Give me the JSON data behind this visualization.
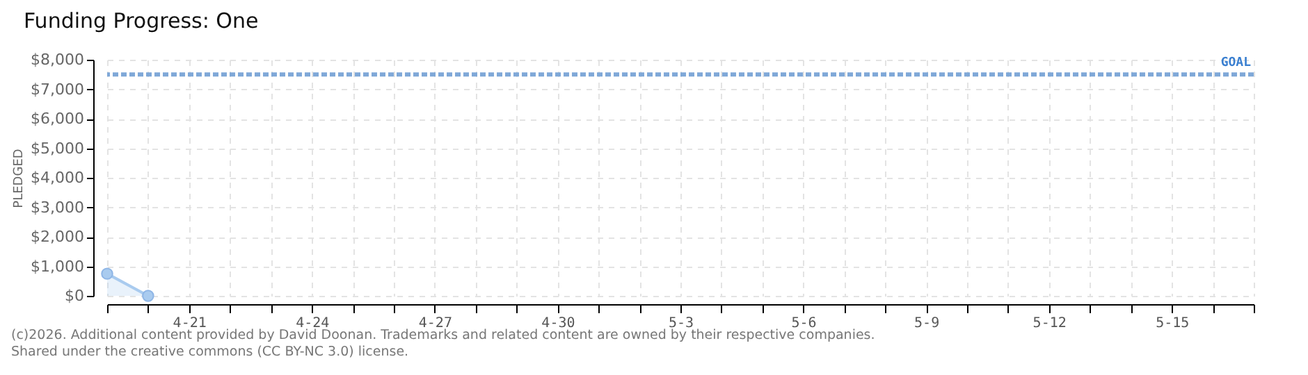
{
  "chart_data": {
    "type": "area",
    "title": "Funding Progress: One",
    "ylabel": "PLEDGED",
    "x": [
      "2026-04-19",
      "2026-04-20"
    ],
    "series": [
      {
        "color": "#a9cbef",
        "values": [
          750,
          0
        ]
      }
    ],
    "marker": "circle",
    "grid": true,
    "xlim": [
      "2026-04-19",
      "2026-05-17"
    ],
    "xticks": [
      {
        "value": "2026-04-19",
        "label": null
      },
      {
        "value": "2026-04-20",
        "label": null
      },
      {
        "value": "2026-04-21",
        "label": "4-21"
      },
      {
        "value": "2026-04-22",
        "label": null
      },
      {
        "value": "2026-04-23",
        "label": null
      },
      {
        "value": "2026-04-24",
        "label": "4-24"
      },
      {
        "value": "2026-04-25",
        "label": null
      },
      {
        "value": "2026-04-26",
        "label": null
      },
      {
        "value": "2026-04-27",
        "label": "4-27"
      },
      {
        "value": "2026-04-28",
        "label": null
      },
      {
        "value": "2026-04-29",
        "label": null
      },
      {
        "value": "2026-04-30",
        "label": "4-30"
      },
      {
        "value": "2026-05-01",
        "label": null
      },
      {
        "value": "2026-05-02",
        "label": null
      },
      {
        "value": "2026-05-03",
        "label": "5-3"
      },
      {
        "value": "2026-05-04",
        "label": null
      },
      {
        "value": "2026-05-05",
        "label": null
      },
      {
        "value": "2026-05-06",
        "label": "5-6"
      },
      {
        "value": "2026-05-07",
        "label": null
      },
      {
        "value": "2026-05-08",
        "label": null
      },
      {
        "value": "2026-05-09",
        "label": "5-9"
      },
      {
        "value": "2026-05-10",
        "label": null
      },
      {
        "value": "2026-05-11",
        "label": null
      },
      {
        "value": "2026-05-12",
        "label": "5-12"
      },
      {
        "value": "2026-05-13",
        "label": null
      },
      {
        "value": "2026-05-14",
        "label": null
      },
      {
        "value": "2026-05-15",
        "label": "5-15"
      },
      {
        "value": "2026-05-16",
        "label": null
      },
      {
        "value": "2026-05-17",
        "label": null
      }
    ],
    "ylim": [
      0,
      8000
    ],
    "yticks": [
      {
        "value": 0,
        "label": "$0"
      },
      {
        "value": 1000,
        "label": "$1,000"
      },
      {
        "value": 2000,
        "label": "$2,000"
      },
      {
        "value": 3000,
        "label": "$3,000"
      },
      {
        "value": 4000,
        "label": "$4,000"
      },
      {
        "value": 5000,
        "label": "$5,000"
      },
      {
        "value": 6000,
        "label": "$6,000"
      },
      {
        "value": 7000,
        "label": "$7,000"
      },
      {
        "value": 8000,
        "label": "$8,000"
      }
    ],
    "ref_lines": [
      {
        "axis": "y",
        "value": 7500,
        "label": "GOAL",
        "color": "#7fa8d8",
        "line_style": "dashed"
      }
    ],
    "annotations": [
      "(c)2026. Additional content provided by David Doonan. Trademarks and related content are owned by their respective companies.",
      "Shared under the creative commons (CC BY-NC 3.0) license."
    ]
  }
}
